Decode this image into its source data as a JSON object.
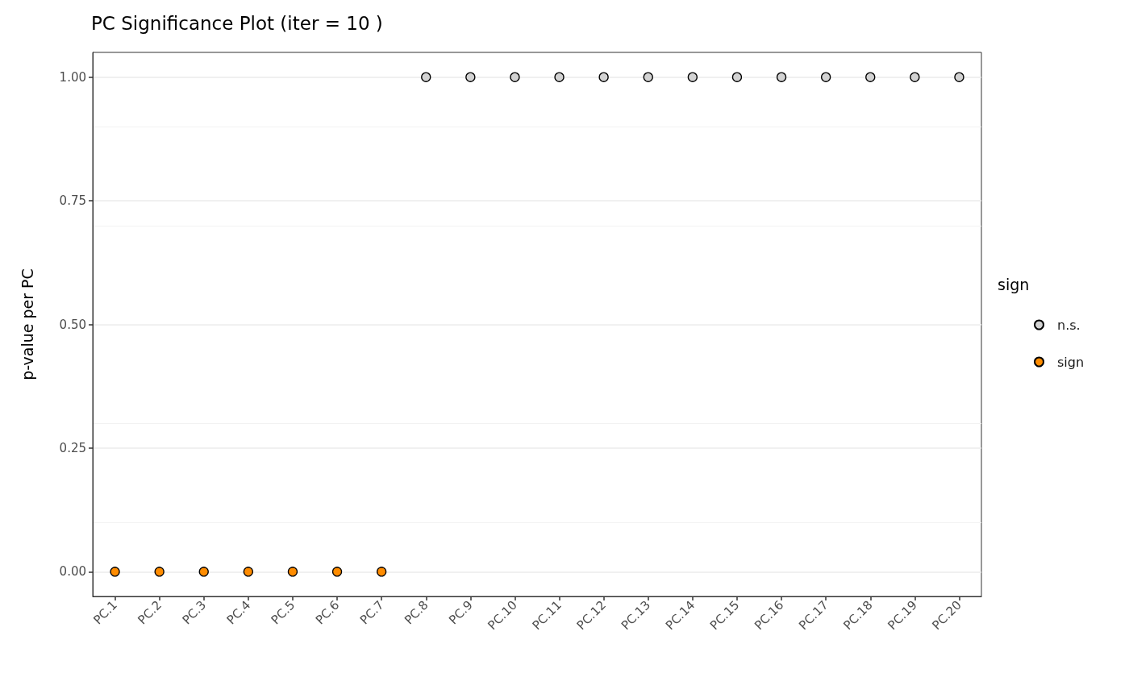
{
  "chart_data": {
    "type": "scatter",
    "title": "PC Significance Plot (iter = 10 )",
    "ylabel": "p-value per PC",
    "legend_title": "sign",
    "categories": [
      "PC.1",
      "PC.2",
      "PC.3",
      "PC.4",
      "PC.5",
      "PC.6",
      "PC.7",
      "PC.8",
      "PC.9",
      "PC.10",
      "PC.11",
      "PC.12",
      "PC.13",
      "PC.14",
      "PC.15",
      "PC.16",
      "PC.17",
      "PC.18",
      "PC.19",
      "PC.20"
    ],
    "series": [
      {
        "name": "n.s.",
        "color": "#d3d3d3",
        "values": [
          null,
          null,
          null,
          null,
          null,
          null,
          null,
          1,
          1,
          1,
          1,
          1,
          1,
          1,
          1,
          1,
          1,
          1,
          1,
          1
        ]
      },
      {
        "name": "sign",
        "color": "#ff8c00",
        "values": [
          0,
          0,
          0,
          0,
          0,
          0,
          0,
          null,
          null,
          null,
          null,
          null,
          null,
          null,
          null,
          null,
          null,
          null,
          null,
          null
        ]
      }
    ],
    "ylim": [
      -0.05,
      1.05
    ],
    "yticks": [
      {
        "value": 0,
        "label": "0.00"
      },
      {
        "value": 0.25,
        "label": "0.25"
      },
      {
        "value": 0.5,
        "label": "0.50"
      },
      {
        "value": 0.75,
        "label": "0.75"
      },
      {
        "value": 1,
        "label": "1.00"
      }
    ],
    "grid": "y",
    "legend": "right",
    "marker": "circle"
  }
}
